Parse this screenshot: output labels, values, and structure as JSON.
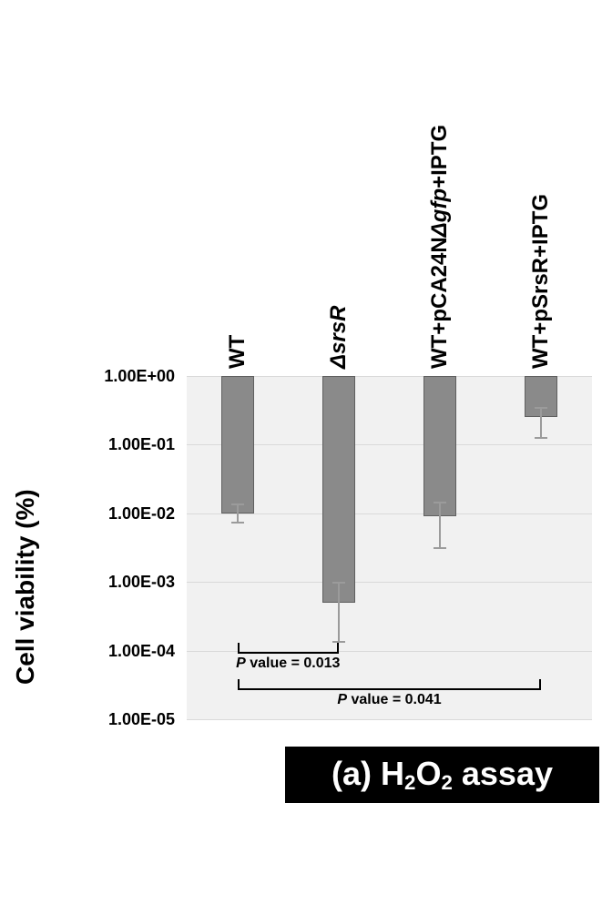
{
  "chart_data": {
    "type": "bar",
    "title": "(a) H2O2 assay",
    "ylabel": "Cell viability (%)",
    "xlabel": "",
    "scale": "log",
    "ylim": [
      1e-05,
      1
    ],
    "grid": true,
    "legend": "none",
    "plot_bg": "#f1f1f1",
    "bar_color": "#8a8a8a",
    "bar_border": "#5f5f5f",
    "error_color": "#9b9b9b",
    "yticks": [
      "1.00E+00",
      "1.00E-01",
      "1.00E-02",
      "1.00E-03",
      "1.00E-04",
      "1.00E-05"
    ],
    "categories": [
      "WT",
      "ΔsrsR",
      "WT+pCA24NΔgfp+IPTG",
      "WT+pSrsR+IPTG"
    ],
    "category_segments": [
      [
        {
          "text": "WT",
          "italic": false
        }
      ],
      [
        {
          "text": "ΔsrsR",
          "italic": true
        }
      ],
      [
        {
          "text": "WT+pCA24N",
          "italic": false
        },
        {
          "text": "Δgfp",
          "italic": true
        },
        {
          "text": "+IPTG",
          "italic": false
        }
      ],
      [
        {
          "text": "WT+pSrsR+IPTG",
          "italic": false
        }
      ]
    ],
    "values": [
      0.01,
      0.0005,
      0.009,
      0.25
    ],
    "error_low": [
      0.007,
      0.00013,
      0.003,
      0.12
    ],
    "error_high": [
      0.014,
      0.001,
      0.015,
      0.35
    ],
    "bar_baseline": 1.0,
    "annotations": [
      {
        "text": "P value = 0.013",
        "from": 0,
        "to": 1,
        "segments": [
          {
            "text": "P",
            "italic": true
          },
          {
            "text": " value = 0.013",
            "italic": false
          }
        ]
      },
      {
        "text": "P value = 0.041",
        "from": 0,
        "to": 3,
        "segments": [
          {
            "text": "P",
            "italic": true
          },
          {
            "text": " value = 0.041",
            "italic": false
          }
        ]
      }
    ]
  },
  "caption": {
    "text": "(a) H2O2 assay",
    "segments": [
      {
        "text": "(a) H",
        "sub": false
      },
      {
        "text": "2",
        "sub": true
      },
      {
        "text": "O",
        "sub": false
      },
      {
        "text": "2",
        "sub": true
      },
      {
        "text": " assay",
        "sub": false
      }
    ]
  }
}
